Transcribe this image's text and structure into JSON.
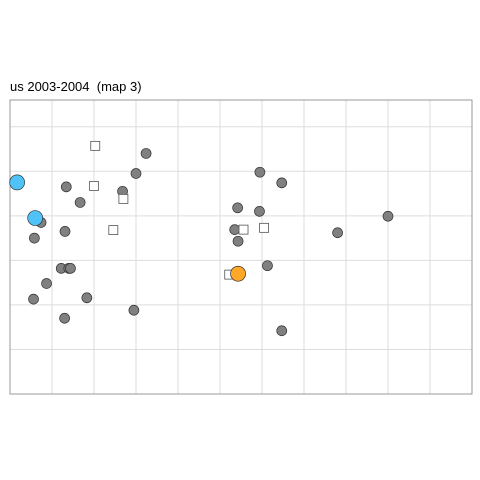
{
  "chart_data": {
    "type": "scatter",
    "title": "us 2003-2004  (map 3)",
    "xlabel": "",
    "ylabel": "",
    "xlim": [
      0,
      11
    ],
    "ylim": [
      0,
      6.6
    ],
    "grid": true,
    "legend": "none",
    "x_gridlines": [
      1,
      2,
      3,
      4,
      5,
      6,
      7,
      8,
      9,
      10
    ],
    "y_gridlines": [
      1,
      2,
      3,
      4,
      5,
      6
    ],
    "colors": {
      "gray_point": "#808080",
      "blue_point": "#4fc3f7",
      "orange_point": "#ffa726",
      "square_fill": "#ffffff",
      "outline": "#333333",
      "grid": "#dddddd",
      "frame": "#999999"
    },
    "series": [
      {
        "marker": "circle",
        "color": "gray",
        "points": [
          [
            3.24,
            5.4
          ],
          [
            3.0,
            4.95
          ],
          [
            1.34,
            4.65
          ],
          [
            2.68,
            4.55
          ],
          [
            1.67,
            4.3
          ],
          [
            0.74,
            3.85
          ],
          [
            1.31,
            3.65
          ],
          [
            0.58,
            3.5
          ],
          [
            1.22,
            2.82
          ],
          [
            1.4,
            2.82
          ],
          [
            1.44,
            2.82
          ],
          [
            0.87,
            2.48
          ],
          [
            0.56,
            2.13
          ],
          [
            1.83,
            2.16
          ],
          [
            1.3,
            1.7
          ],
          [
            2.95,
            1.88
          ],
          [
            5.95,
            4.98
          ],
          [
            6.47,
            4.74
          ],
          [
            5.42,
            4.18
          ],
          [
            5.94,
            4.1
          ],
          [
            5.35,
            3.69
          ],
          [
            5.43,
            3.43
          ],
          [
            7.8,
            3.62
          ],
          [
            9.0,
            3.99
          ],
          [
            6.13,
            2.88
          ],
          [
            6.47,
            1.42
          ]
        ]
      },
      {
        "marker": "square",
        "color": "white",
        "points": [
          [
            2.03,
            5.57
          ],
          [
            2.0,
            4.67
          ],
          [
            2.7,
            4.38
          ],
          [
            2.46,
            3.68
          ],
          [
            5.56,
            3.69
          ],
          [
            6.05,
            3.73
          ],
          [
            5.22,
            2.68
          ]
        ]
      },
      {
        "marker": "circle-large",
        "color": "blue",
        "points": [
          [
            0.17,
            4.75
          ],
          [
            0.6,
            3.95
          ]
        ]
      },
      {
        "marker": "circle-large",
        "color": "orange",
        "points": [
          [
            5.43,
            2.7
          ]
        ]
      }
    ]
  }
}
